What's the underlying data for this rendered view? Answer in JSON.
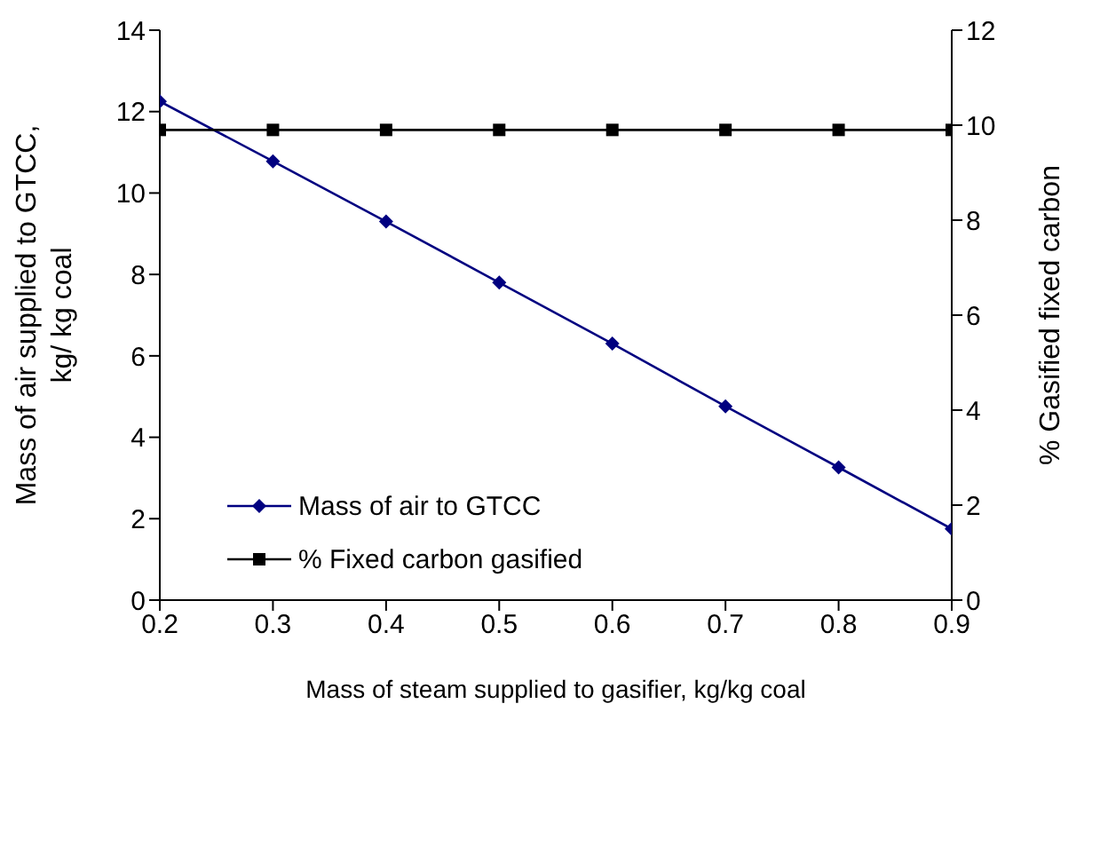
{
  "chart_data": {
    "type": "line",
    "xlabel": "Mass of steam supplied to gasifier, kg/kg coal",
    "ylabel": "Mass of air supplied to GTCC,\nkg/ kg coal",
    "y2label": "% Gasified fixed carbon",
    "x": [
      0.2,
      0.3,
      0.4,
      0.5,
      0.6,
      0.7,
      0.8,
      0.9
    ],
    "xlim": [
      0.2,
      0.9
    ],
    "xticks": [
      0.2,
      0.3,
      0.4,
      0.5,
      0.6,
      0.7,
      0.8,
      0.9
    ],
    "ylim": [
      0,
      14
    ],
    "yticks": [
      0,
      2,
      4,
      6,
      8,
      10,
      12,
      14
    ],
    "y2lim": [
      0,
      12
    ],
    "y2ticks": [
      0,
      2,
      4,
      6,
      8,
      10,
      12
    ],
    "series": [
      {
        "name": "Mass of air to GTCC",
        "color": "#000080",
        "marker": "diamond",
        "values": [
          12.25,
          10.78,
          9.3,
          7.8,
          6.3,
          4.76,
          3.26,
          1.75
        ]
      },
      {
        "name": "% Fixed carbon gasified",
        "color": "#000000",
        "marker": "square",
        "axis": "y2",
        "values": [
          9.9,
          9.9,
          9.9,
          9.9,
          9.9,
          9.9,
          9.9,
          9.9
        ]
      }
    ],
    "legend": "bottom left",
    "grid": false
  }
}
